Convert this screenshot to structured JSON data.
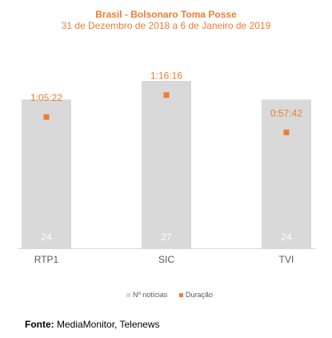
{
  "chart_data": {
    "type": "bar",
    "title": "Brasil - Bolsonaro Toma Posse",
    "subtitle": "31 de Dezembro de 2018 a 6 de Janeiro de 2019",
    "categories": [
      "RTP1",
      "SIC",
      "TVI"
    ],
    "series": [
      {
        "name": "Nº notícias",
        "type": "bar",
        "values": [
          24,
          27,
          24
        ],
        "labels": [
          "24",
          "27",
          "24"
        ],
        "color": "#D9D9D9"
      },
      {
        "name": "Duração",
        "type": "marker",
        "values_seconds": [
          3922,
          4576,
          3462
        ],
        "labels": [
          "1:05:22",
          "1:16:16",
          "0:57:42"
        ],
        "color": "#ED7D31"
      }
    ],
    "ylim_count": [
      0,
      27
    ],
    "ylim_duration_seconds": [
      0,
      5000
    ],
    "grid": false,
    "legend": "bottom"
  },
  "source": {
    "label": "Fonte:",
    "text": " MediaMonitor, Telenews"
  }
}
